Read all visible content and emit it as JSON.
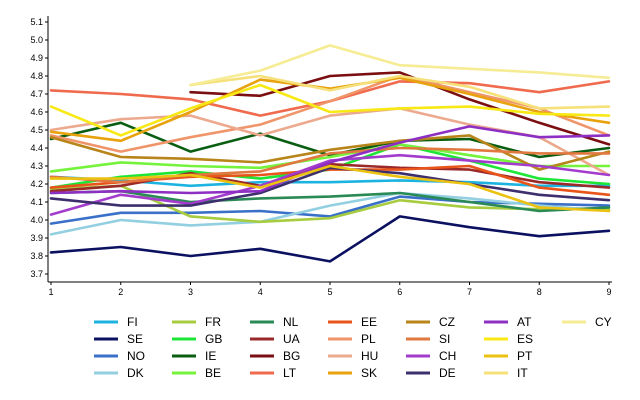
{
  "chart_data": {
    "type": "line",
    "x": [
      1,
      2,
      3,
      4,
      5,
      6,
      7,
      8,
      9
    ],
    "ylim": [
      3.7,
      5.1
    ],
    "yticks": [
      3.7,
      3.8,
      3.9,
      4.0,
      4.1,
      4.2,
      4.3,
      4.4,
      4.5,
      4.6,
      4.7,
      4.8,
      4.9,
      5.0,
      5.1
    ],
    "ytick_labels": [
      "3.7",
      "3.8",
      "3.9",
      "4.0",
      "4.1",
      "4.2",
      "4.3",
      "4.4",
      "4.5",
      "4.6",
      "4.7",
      "4.8",
      "4.9",
      "5.0",
      "5.1"
    ],
    "xtick_labels": [
      "1",
      "2",
      "3",
      "4",
      "5",
      "6",
      "7",
      "8",
      "9"
    ],
    "grid": false,
    "legend_position": "bottom",
    "series": [
      {
        "name": "FI",
        "color": "#1db3e0",
        "values": [
          4.24,
          4.22,
          4.19,
          4.21,
          4.21,
          4.22,
          4.21,
          4.19,
          4.19
        ]
      },
      {
        "name": "SE",
        "color": "#0b1160",
        "values": [
          3.82,
          3.85,
          3.8,
          3.84,
          3.77,
          4.02,
          3.96,
          3.91,
          3.94
        ]
      },
      {
        "name": "NO",
        "color": "#3a70c8",
        "values": [
          3.98,
          4.04,
          4.04,
          4.05,
          4.02,
          4.13,
          4.1,
          4.09,
          4.08
        ]
      },
      {
        "name": "DK",
        "color": "#92cfe0",
        "values": [
          3.92,
          4.0,
          3.97,
          3.99,
          4.08,
          4.15,
          4.12,
          4.08,
          4.05
        ]
      },
      {
        "name": "FR",
        "color": "#a7cc3f",
        "values": [
          4.17,
          4.19,
          4.02,
          3.99,
          4.01,
          4.11,
          4.07,
          4.06,
          4.06
        ]
      },
      {
        "name": "GB",
        "color": "#1ee636",
        "values": [
          4.18,
          4.24,
          4.27,
          4.23,
          4.28,
          4.42,
          4.33,
          4.23,
          4.2
        ]
      },
      {
        "name": "IE",
        "color": "#0a5e12",
        "values": [
          4.45,
          4.54,
          4.38,
          4.48,
          4.36,
          4.44,
          4.45,
          4.35,
          4.4
        ]
      },
      {
        "name": "BE",
        "color": "#74f23c",
        "values": [
          4.27,
          4.32,
          4.3,
          4.29,
          4.35,
          4.42,
          4.36,
          4.3,
          4.3
        ]
      },
      {
        "name": "NL",
        "color": "#2a8a55",
        "values": [
          4.15,
          4.16,
          4.1,
          4.12,
          4.13,
          4.15,
          4.1,
          4.05,
          4.07
        ]
      },
      {
        "name": "UA",
        "color": "#9a2a2a",
        "values": [
          4.16,
          4.19,
          4.26,
          4.19,
          4.31,
          4.29,
          4.28,
          4.21,
          4.18
        ]
      },
      {
        "name": "BG",
        "color": "#7a0e10",
        "values": [
          null,
          null,
          4.71,
          4.69,
          4.8,
          4.82,
          4.67,
          4.54,
          4.42
        ]
      },
      {
        "name": "LT",
        "color": "#f06a4e",
        "values": [
          4.72,
          4.7,
          4.67,
          4.58,
          4.66,
          4.77,
          4.76,
          4.71,
          4.77
        ]
      },
      {
        "name": "EE",
        "color": "#e8541a",
        "values": [
          4.18,
          4.21,
          4.24,
          4.25,
          4.28,
          4.28,
          4.3,
          4.18,
          4.14
        ]
      },
      {
        "name": "PL",
        "color": "#f0956a",
        "values": [
          4.47,
          4.38,
          4.46,
          4.53,
          4.66,
          4.8,
          4.71,
          4.62,
          4.47
        ]
      },
      {
        "name": "HU",
        "color": "#eca98e",
        "values": [
          4.5,
          4.56,
          4.58,
          4.47,
          4.58,
          4.62,
          4.53,
          4.46,
          4.25
        ]
      },
      {
        "name": "SK",
        "color": "#e8a20e",
        "values": [
          4.49,
          4.44,
          4.6,
          4.78,
          4.73,
          4.79,
          4.7,
          4.6,
          4.54
        ]
      },
      {
        "name": "CZ",
        "color": "#b7851a",
        "values": [
          4.46,
          4.35,
          4.34,
          4.32,
          4.39,
          4.44,
          4.47,
          4.28,
          4.38
        ]
      },
      {
        "name": "SI",
        "color": "#e07840",
        "values": [
          4.24,
          4.21,
          4.25,
          4.27,
          4.37,
          4.4,
          4.39,
          4.37,
          4.37
        ]
      },
      {
        "name": "CH",
        "color": "#a33ccc",
        "values": [
          4.03,
          4.14,
          4.09,
          4.19,
          4.33,
          4.36,
          4.33,
          4.3,
          4.25
        ]
      },
      {
        "name": "DE",
        "color": "#3d2f6e",
        "values": [
          4.12,
          4.08,
          4.08,
          4.15,
          4.29,
          4.26,
          4.2,
          4.14,
          4.11
        ]
      },
      {
        "name": "AT",
        "color": "#8e2fc4",
        "values": [
          4.15,
          4.16,
          4.15,
          4.16,
          4.32,
          4.43,
          4.52,
          4.46,
          4.47
        ]
      },
      {
        "name": "ES",
        "color": "#f8e814",
        "values": [
          4.63,
          4.47,
          4.62,
          4.75,
          4.6,
          4.62,
          4.63,
          4.59,
          4.58
        ]
      },
      {
        "name": "PT",
        "color": "#ecc212",
        "values": [
          4.23,
          4.23,
          4.25,
          4.18,
          4.3,
          4.24,
          4.2,
          4.07,
          4.05
        ]
      },
      {
        "name": "IT",
        "color": "#f5e07a",
        "values": [
          null,
          null,
          4.75,
          4.8,
          4.72,
          4.8,
          4.74,
          4.62,
          4.63
        ]
      },
      {
        "name": "CY",
        "color": "#f6ec94",
        "values": [
          null,
          null,
          4.75,
          4.83,
          4.97,
          4.86,
          4.84,
          4.82,
          4.79
        ]
      }
    ],
    "legend_columns": [
      [
        "FI",
        "SE",
        "NO",
        "DK"
      ],
      [
        "FR",
        "GB",
        "IE",
        "BE"
      ],
      [
        "NL",
        "UA",
        "BG",
        "LT"
      ],
      [
        "EE",
        "PL",
        "HU",
        "SK"
      ],
      [
        "CZ",
        "SI",
        "CH",
        "DE"
      ],
      [
        "AT",
        "ES",
        "PT",
        "IT"
      ],
      [
        "CY"
      ]
    ]
  }
}
